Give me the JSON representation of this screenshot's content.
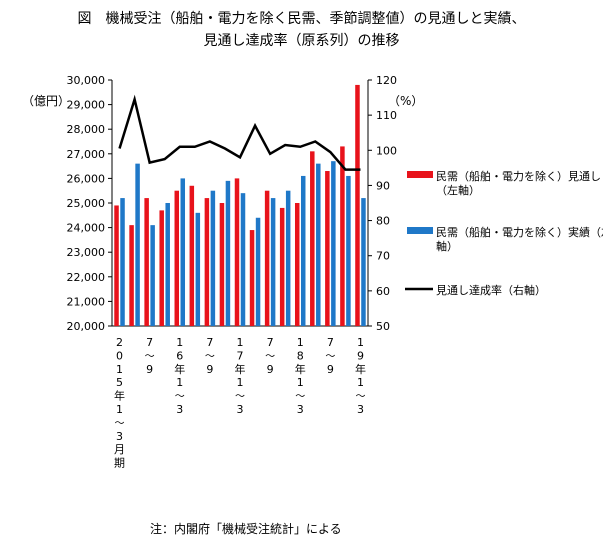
{
  "chart_data": {
    "type": "bar",
    "title_line1": "図　機械受注（船舶・電力を除く民需、季節調整値）の見通しと実績、",
    "title_line2": "見通し達成率（原系列）の推移",
    "left_unit": "（億円）",
    "right_unit": "（%）",
    "note": "注：内閣府「機械受注統計」による",
    "left_axis": {
      "min": 20000,
      "max": 30000,
      "step": 1000,
      "ticks": [
        "20,000",
        "21,000",
        "22,000",
        "23,000",
        "24,000",
        "25,000",
        "26,000",
        "27,000",
        "28,000",
        "29,000",
        "30,000"
      ]
    },
    "right_axis": {
      "min": 50,
      "max": 120,
      "step": 10,
      "ticks": [
        "50",
        "60",
        "70",
        "80",
        "90",
        "100",
        "110",
        "120"
      ]
    },
    "x_labels": [
      {
        "index": 0,
        "text": "2015年1〜3月期"
      },
      {
        "index": 2,
        "text": "7〜9"
      },
      {
        "index": 4,
        "text": "16年1〜3"
      },
      {
        "index": 6,
        "text": "7〜9"
      },
      {
        "index": 8,
        "text": "17年1〜3"
      },
      {
        "index": 10,
        "text": "7〜9"
      },
      {
        "index": 12,
        "text": "18年1〜3"
      },
      {
        "index": 14,
        "text": "7〜9"
      },
      {
        "index": 16,
        "text": "19年1〜3"
      }
    ],
    "series": [
      {
        "name": "民需（船舶・電力を除く）見通し（左軸）",
        "axis": "left",
        "kind": "bar",
        "color": "#e8131b",
        "values": [
          24900,
          24100,
          25200,
          24700,
          25500,
          25700,
          25200,
          25000,
          26000,
          23900,
          25500,
          24800,
          25000,
          27100,
          26300,
          27300,
          29800
        ]
      },
      {
        "name": "民需（船舶・電力を除く）実績（左軸）",
        "axis": "left",
        "kind": "bar",
        "color": "#1f78c8",
        "values": [
          25200,
          26600,
          24100,
          25000,
          26000,
          24600,
          25500,
          25900,
          25400,
          24400,
          25200,
          25500,
          26100,
          26600,
          26700,
          26100,
          25200
        ]
      },
      {
        "name": "見通し達成率（右軸）",
        "axis": "right",
        "kind": "line",
        "color": "#000000",
        "values": [
          100.5,
          114.5,
          96.5,
          97.5,
          101,
          101,
          102.5,
          100.5,
          98,
          107,
          99,
          101.5,
          101,
          102.5,
          99.5,
          94.5,
          94.5
        ]
      }
    ]
  }
}
